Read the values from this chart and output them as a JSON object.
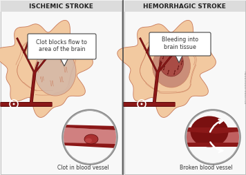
{
  "title_left": "ISCHEMIC STROKE",
  "title_right": "HEMORRHAGIC STROKE",
  "label_left": "Clot in blood vessel",
  "label_right": "Broken blood vessel",
  "callout_left": "Clot blocks flow to\narea of the brain",
  "callout_right": "Bleeding into\nbrain tissue",
  "bg_color": "#f0f0f0",
  "panel_bg": "#f8f8f8",
  "brain_outer_color": "#f2c9a0",
  "brain_mid_color": "#e8b080",
  "brain_crease_color": "#c87858",
  "damaged_color_L": "#d4b8a8",
  "damaged_color_R": "#b87060",
  "artery_color": "#8b1818",
  "artery_dark": "#5a0808",
  "blood_mid": "#aa2222",
  "white": "#ffffff",
  "text_dark": "#333333",
  "callout_bg": "#ffffff",
  "callout_border": "#444444",
  "title_color": "#222222",
  "divider_color": "#444444",
  "zoom_bg": "#c8c8c8",
  "vessel_wall": "#c07070",
  "vessel_inner": "#d08080",
  "clot_fill": "#aa3030",
  "watermark": "AboutKidsHealth.ca",
  "figsize": [
    3.56,
    2.54
  ],
  "dpi": 100
}
